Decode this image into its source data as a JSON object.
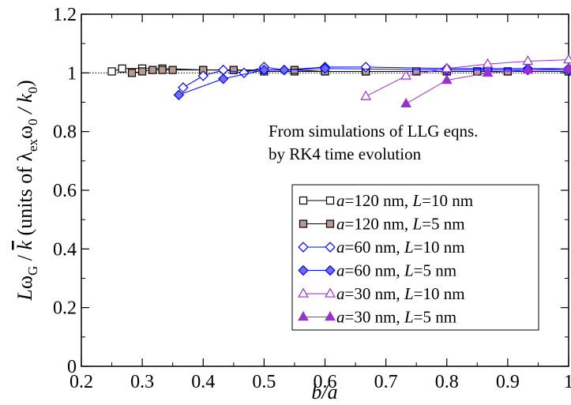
{
  "chart_data": {
    "type": "line",
    "xlabel": "b/a",
    "ylabel_parts": {
      "main": "Lω",
      "main_sub": "G",
      "slash": " / ",
      "kbar": "k",
      "units_open": "  (units of  λ",
      "units_sub1": "ex",
      "units_mid": "ω",
      "units_sub2": "0",
      "units_slash": " / k",
      "units_sub3": "0",
      "units_close": ")"
    },
    "xlim": [
      0.2,
      1.0
    ],
    "ylim": [
      0,
      1.2
    ],
    "xticks": [
      0.2,
      0.3,
      0.4,
      0.5,
      0.6,
      0.7,
      0.8,
      0.9,
      1.0
    ],
    "xtick_labels": [
      "0.2",
      "0.3",
      "0.4",
      "0.5",
      "0.6",
      "0.7",
      "0.8",
      "0.9",
      "1"
    ],
    "yticks": [
      0,
      0.2,
      0.4,
      0.6,
      0.8,
      1.0,
      1.2
    ],
    "ytick_labels": [
      "0",
      "0.2",
      "0.4",
      "0.6",
      "0.8",
      "1",
      "1.2"
    ],
    "reference_line_y": 1.0,
    "annotation": [
      "From simulations of LLG eqns.",
      "by RK4 time evolution"
    ],
    "legend_position": "lower-right",
    "series": [
      {
        "name_a": "a",
        "name_mid": "=120 nm, ",
        "name_l": "L",
        "name_end": "=10 nm",
        "marker": "square",
        "stroke": "#000000",
        "fill": "#ffffff",
        "line": "#000000",
        "x": [
          0.25,
          0.267,
          0.3,
          0.333,
          0.4,
          0.45,
          0.5,
          0.55,
          0.6,
          0.667,
          0.75,
          0.8,
          0.85,
          0.9,
          1.0
        ],
        "y": [
          1.005,
          1.015,
          1.015,
          1.015,
          1.01,
          1.01,
          1.005,
          1.005,
          1.005,
          1.005,
          1.005,
          1.005,
          1.005,
          1.005,
          1.005
        ]
      },
      {
        "name_a": "a",
        "name_mid": "=120 nm, ",
        "name_l": "L",
        "name_end": "=5 nm",
        "marker": "square",
        "stroke": "#000000",
        "fill": "#b89a8e",
        "line": "#000000",
        "x": [
          0.283,
          0.3,
          0.317,
          0.333,
          0.35,
          0.4,
          0.45,
          0.5,
          0.55,
          0.6,
          0.667,
          0.75,
          0.8,
          0.85,
          0.9,
          1.0
        ],
        "y": [
          1.0,
          1.005,
          1.01,
          1.01,
          1.01,
          1.01,
          1.01,
          1.01,
          1.01,
          1.005,
          1.005,
          1.005,
          1.005,
          1.005,
          1.005,
          1.005
        ]
      },
      {
        "name_a": "a",
        "name_mid": "=60 nm, ",
        "name_l": "L",
        "name_end": "=10 nm",
        "marker": "diamond",
        "stroke": "#0000ff",
        "fill": "#ffffff",
        "line": "#0000ff",
        "x": [
          0.367,
          0.4,
          0.433,
          0.467,
          0.5,
          0.533,
          0.6,
          0.667,
          0.8,
          0.867,
          0.933,
          1.0
        ],
        "y": [
          0.95,
          0.99,
          1.01,
          1.0,
          1.02,
          1.01,
          1.02,
          1.02,
          1.015,
          1.015,
          1.015,
          1.015
        ]
      },
      {
        "name_a": "a",
        "name_mid": "=60 nm, ",
        "name_l": "L",
        "name_end": "=5 nm",
        "marker": "diamond",
        "stroke": "#0000ff",
        "fill": "#6f70e8",
        "line": "#0000ff",
        "x": [
          0.36,
          0.433,
          0.5,
          0.533,
          0.6,
          0.8,
          0.867,
          0.933,
          1.0
        ],
        "y": [
          0.925,
          0.98,
          1.01,
          1.01,
          1.015,
          1.01,
          1.01,
          1.01,
          1.01
        ]
      },
      {
        "name_a": "a",
        "name_mid": "=30 nm, ",
        "name_l": "L",
        "name_end": "=10 nm",
        "marker": "triangle",
        "stroke": "#9932cc",
        "fill": "#ffffff",
        "line": "#9932cc",
        "x": [
          0.667,
          0.733,
          0.8,
          0.867,
          0.933,
          1.0
        ],
        "y": [
          0.92,
          0.99,
          1.015,
          1.03,
          1.04,
          1.045
        ]
      },
      {
        "name_a": "a",
        "name_mid": "=30 nm, ",
        "name_l": "L",
        "name_end": "=5 nm",
        "marker": "triangle",
        "stroke": "#9932cc",
        "fill": "#9932cc",
        "line": "#9932cc",
        "x": [
          0.733,
          0.8,
          0.867,
          0.933,
          1.0
        ],
        "y": [
          0.895,
          0.975,
          1.0,
          1.01,
          1.015
        ]
      }
    ]
  }
}
